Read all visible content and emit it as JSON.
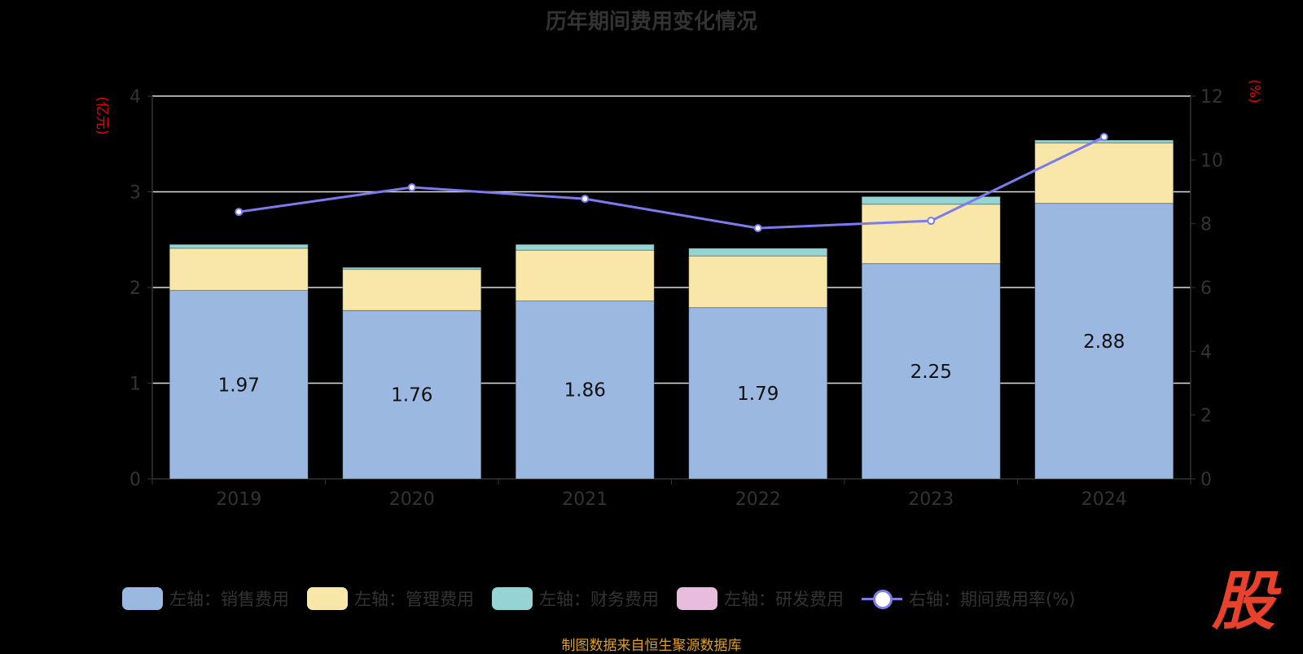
{
  "chart_data": {
    "type": "bar",
    "title": "历年期间费用变化情况",
    "categories": [
      "2019",
      "2020",
      "2021",
      "2022",
      "2023",
      "2024"
    ],
    "left_axis": {
      "label": "(亿元)",
      "ylim": [
        0,
        4
      ],
      "ticks": [
        "0",
        "1",
        "2",
        "3",
        "4"
      ]
    },
    "right_axis": {
      "label": "(%)",
      "ylim": [
        0,
        12
      ],
      "ticks": [
        "0",
        "2",
        "4",
        "6",
        "8",
        "10",
        "12"
      ]
    },
    "series": [
      {
        "name": "左轴：销售费用",
        "type": "bar",
        "axis": "left",
        "color": "#9ab8e0",
        "values": [
          1.97,
          1.76,
          1.86,
          1.79,
          2.25,
          2.88
        ],
        "labels": [
          "1.97",
          "1.76",
          "1.86",
          "1.79",
          "2.25",
          "2.88"
        ]
      },
      {
        "name": "左轴：管理费用",
        "type": "bar",
        "axis": "left",
        "color": "#f8e7a8",
        "values": [
          0.44,
          0.43,
          0.53,
          0.54,
          0.62,
          0.63
        ]
      },
      {
        "name": "左轴：财务费用",
        "type": "bar",
        "axis": "left",
        "color": "#96d4d4",
        "values": [
          0.04,
          0.02,
          0.06,
          0.08,
          0.08,
          0.03
        ]
      },
      {
        "name": "左轴：研发费用",
        "type": "bar",
        "axis": "left",
        "color": "#e8bcdc",
        "values": [
          0,
          0,
          0,
          0,
          0,
          0
        ]
      },
      {
        "name": "右轴：期间费用率(%)",
        "type": "line",
        "axis": "right",
        "color": "#7b7bee",
        "values": [
          8.37,
          9.14,
          8.78,
          7.86,
          8.09,
          10.72
        ]
      }
    ],
    "grid": true,
    "legend_position": "bottom"
  },
  "source": "制图数据来自恒生聚源数据库",
  "logo_text": "股"
}
